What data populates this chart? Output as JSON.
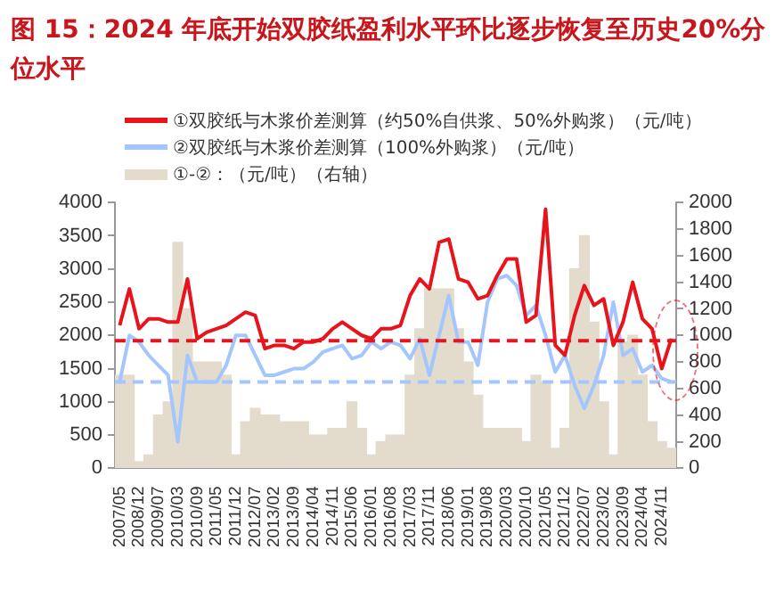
{
  "chart_data": {
    "type": "line",
    "title": "图 15：2024 年底开始双胶纸盈利水平环比逐步恢复至历史20%分位水平",
    "legend": "top",
    "marker": "none",
    "categories": [
      "2007/05",
      null,
      "2008/12",
      null,
      "2009/07",
      null,
      "2010/03",
      null,
      "2010/09",
      null,
      "2011/05",
      null,
      "2011/12",
      null,
      "2012/07",
      null,
      "2013/02",
      null,
      "2013/09",
      null,
      "2014/04",
      null,
      "2014/11",
      null,
      "2015/06",
      null,
      "2016/01",
      null,
      "2016/08",
      null,
      "2017/03",
      null,
      "2017/11",
      null,
      "2018/06",
      null,
      "2019/01",
      null,
      "2019/08",
      null,
      "2020/03",
      null,
      "2020/10",
      null,
      "2021/05",
      null,
      "2021/12",
      null,
      "2022/07",
      null,
      "2023/02",
      null,
      "2023/09",
      null,
      "2024/04",
      null,
      "2024/11",
      null
    ],
    "series": [
      {
        "name": "①双胶纸与木浆价差测算（约50%自供浆、50%外购浆）（元/吨）",
        "color": "#e8141c",
        "values": [
          2150,
          2700,
          2100,
          2250,
          2250,
          2200,
          2200,
          2850,
          1950,
          2050,
          2100,
          2150,
          2250,
          2350,
          2300,
          1800,
          1850,
          1850,
          1800,
          1900,
          1900,
          1950,
          2100,
          2200,
          2100,
          2000,
          1950,
          2100,
          2100,
          2150,
          2600,
          2850,
          2700,
          3400,
          3450,
          2850,
          2800,
          2550,
          2600,
          2900,
          3150,
          3150,
          2200,
          2300,
          3900,
          1850,
          1700,
          2300,
          2750,
          2450,
          2550,
          1850,
          2200,
          2800,
          2250,
          2100,
          1500,
          1950
        ]
      },
      {
        "name": "②双胶纸与木浆价差测算（100%外购浆）（元/吨）",
        "color": "#a3c6ff",
        "values": [
          1300,
          2000,
          1900,
          1700,
          1550,
          1400,
          400,
          1700,
          1300,
          1300,
          1300,
          1550,
          2000,
          2000,
          1700,
          1400,
          1400,
          1450,
          1500,
          1500,
          1600,
          1750,
          1800,
          1850,
          1650,
          1700,
          1900,
          1800,
          1900,
          1850,
          1650,
          1950,
          1400,
          2000,
          2600,
          1900,
          1900,
          1550,
          2500,
          2850,
          2900,
          2750,
          2300,
          2450,
          2000,
          1450,
          1700,
          1250,
          900,
          1250,
          1700,
          2500,
          1700,
          1800,
          1450,
          1550,
          1350,
          1300
        ]
      },
      {
        "name": "①-②：（元/吨）（右轴）",
        "type": "bar",
        "axis": "y2",
        "color": "#e3dccd",
        "values": [
          700,
          700,
          50,
          100,
          400,
          500,
          1700,
          1200,
          800,
          800,
          800,
          700,
          100,
          350,
          450,
          400,
          400,
          350,
          350,
          350,
          250,
          250,
          300,
          300,
          500,
          300,
          100,
          200,
          250,
          250,
          700,
          1050,
          1350,
          1350,
          1350,
          1050,
          800,
          550,
          300,
          300,
          300,
          300,
          200,
          700,
          650,
          150,
          300,
          1500,
          1750,
          1100,
          500,
          100,
          950,
          1000,
          700,
          350,
          200,
          150
        ]
      }
    ],
    "ylim": [
      0,
      4000
    ],
    "yticks": [
      0,
      500,
      1000,
      1500,
      2000,
      2500,
      3000,
      3500,
      4000
    ],
    "y2lim": [
      0,
      2000
    ],
    "y2ticks": [
      0,
      200,
      400,
      600,
      800,
      1000,
      1200,
      1400,
      1600,
      1800,
      2000
    ],
    "ref_lines": [
      {
        "axis": "y",
        "value": 1920,
        "color": "#e8141c",
        "line_style": "dashed"
      },
      {
        "axis": "y",
        "value": 1300,
        "color": "#a3c6ff",
        "line_style": "dashed"
      }
    ]
  }
}
